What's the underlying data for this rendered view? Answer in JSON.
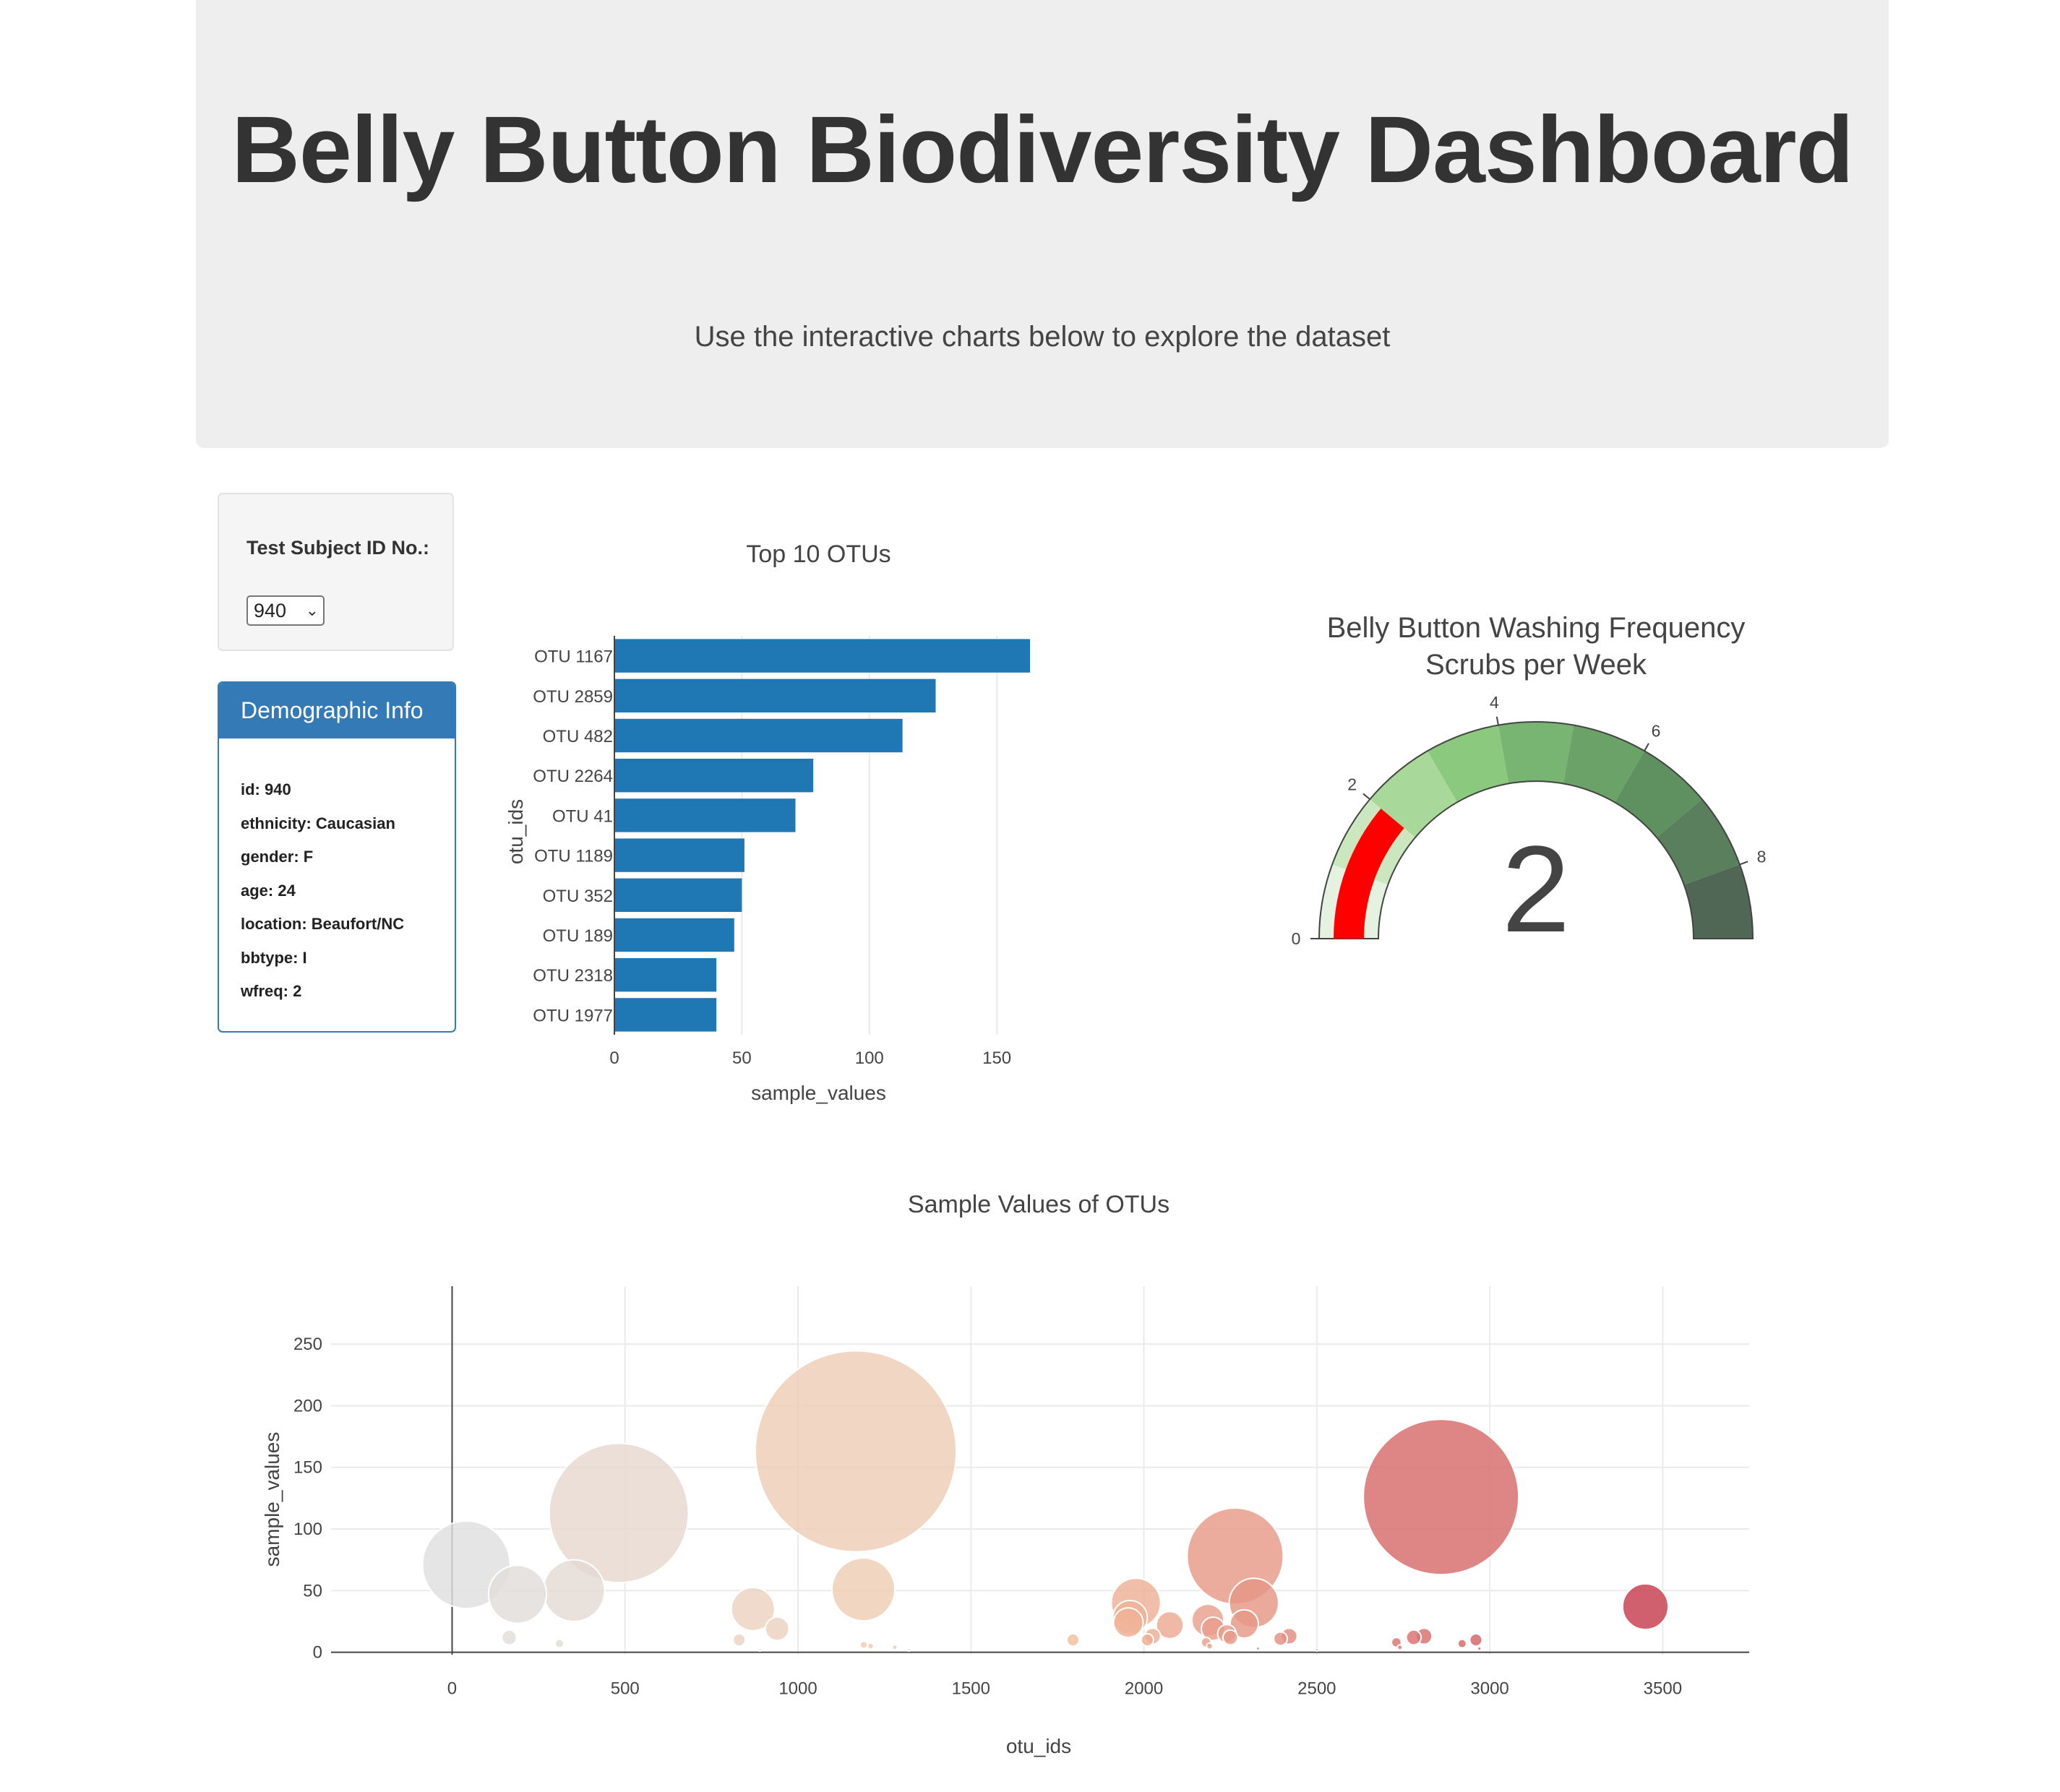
{
  "header": {
    "title": "Belly Button Biodiversity Dashboard",
    "subtitle": "Use the interactive charts below to explore the dataset"
  },
  "selector": {
    "label": "Test Subject ID No.:",
    "selected": "940"
  },
  "demographics": {
    "heading": "Demographic Info",
    "lines": [
      "id: 940",
      "ethnicity: Caucasian",
      "gender: F",
      "age: 24",
      "location: Beaufort/NC",
      "bbtype: I",
      "wfreq: 2"
    ]
  },
  "colors": {
    "bar": "#1f77b4",
    "gauge_needle": "#ff0000",
    "panel": "#337ab7"
  },
  "chart_data": [
    {
      "type": "bar",
      "orientation": "horizontal",
      "title": "Top 10 OTUs",
      "xlabel": "sample_values",
      "ylabel": "otu_ids",
      "categories": [
        "OTU 1167",
        "OTU 2859",
        "OTU 482",
        "OTU 2264",
        "OTU 41",
        "OTU 1189",
        "OTU 352",
        "OTU 189",
        "OTU 2318",
        "OTU 1977"
      ],
      "values": [
        163,
        126,
        113,
        78,
        71,
        51,
        50,
        47,
        40,
        40
      ],
      "xlim": [
        0,
        163
      ],
      "xticks": [
        0,
        50,
        100,
        150
      ],
      "grid": true
    },
    {
      "type": "gauge",
      "title": "Belly Button Washing Frequency",
      "subtitle": "Scrubs per Week",
      "value": 2,
      "range": [
        0,
        9
      ],
      "ticks": [
        0,
        2,
        4,
        6,
        8
      ],
      "steps": [
        {
          "range": [
            0,
            1
          ],
          "color": "#e6f2e0"
        },
        {
          "range": [
            1,
            2
          ],
          "color": "#cbe7c0"
        },
        {
          "range": [
            2,
            3
          ],
          "color": "#a8d89a"
        },
        {
          "range": [
            3,
            4
          ],
          "color": "#8bc97f"
        },
        {
          "range": [
            4,
            5
          ],
          "color": "#78b573"
        },
        {
          "range": [
            5,
            6
          ],
          "color": "#6aa267"
        },
        {
          "range": [
            6,
            7
          ],
          "color": "#5f9160"
        },
        {
          "range": [
            7,
            8
          ],
          "color": "#5a7f5c"
        },
        {
          "range": [
            8,
            9
          ],
          "color": "#516756"
        }
      ],
      "bar_color": "#ff0000"
    },
    {
      "type": "scatter",
      "title": "Sample Values of OTUs",
      "xlabel": "otu_ids",
      "ylabel": "sample_values",
      "xlim": [
        -350,
        3750
      ],
      "ylim": [
        -2,
        297
      ],
      "xticks": [
        0,
        500,
        1000,
        1500,
        2000,
        2500,
        3000,
        3500
      ],
      "yticks": [
        0,
        50,
        100,
        150,
        200,
        250
      ],
      "grid": true,
      "colorscale": [
        "#e0e0e0",
        "#f5c4a2",
        "#c73d4e"
      ],
      "points": [
        {
          "x": 41,
          "y": 71
        },
        {
          "x": 189,
          "y": 47
        },
        {
          "x": 352,
          "y": 50
        },
        {
          "x": 482,
          "y": 113
        },
        {
          "x": 1167,
          "y": 163
        },
        {
          "x": 1189,
          "y": 51
        },
        {
          "x": 2859,
          "y": 126
        },
        {
          "x": 2264,
          "y": 78
        },
        {
          "x": 2318,
          "y": 40
        },
        {
          "x": 3450,
          "y": 37
        },
        {
          "x": 870,
          "y": 35
        },
        {
          "x": 940,
          "y": 19
        },
        {
          "x": 1977,
          "y": 40
        },
        {
          "x": 1960,
          "y": 28
        },
        {
          "x": 1955,
          "y": 24
        },
        {
          "x": 2075,
          "y": 22
        },
        {
          "x": 2185,
          "y": 26
        },
        {
          "x": 2200,
          "y": 19
        },
        {
          "x": 2240,
          "y": 15
        },
        {
          "x": 2290,
          "y": 23
        },
        {
          "x": 2250,
          "y": 12
        },
        {
          "x": 2420,
          "y": 13
        },
        {
          "x": 2395,
          "y": 11
        },
        {
          "x": 1795,
          "y": 10
        },
        {
          "x": 2025,
          "y": 13
        },
        {
          "x": 2010,
          "y": 10
        },
        {
          "x": 2180,
          "y": 8
        },
        {
          "x": 2190,
          "y": 5
        },
        {
          "x": 2810,
          "y": 13
        },
        {
          "x": 2780,
          "y": 12
        },
        {
          "x": 2960,
          "y": 10
        },
        {
          "x": 2730,
          "y": 8
        },
        {
          "x": 2920,
          "y": 7
        },
        {
          "x": 165,
          "y": 12
        },
        {
          "x": 310,
          "y": 7
        },
        {
          "x": 830,
          "y": 10
        },
        {
          "x": 1190,
          "y": 6
        },
        {
          "x": 1210,
          "y": 5
        },
        {
          "x": 1280,
          "y": 4
        },
        {
          "x": 2740,
          "y": 4
        },
        {
          "x": 2970,
          "y": 3
        },
        {
          "x": 2500,
          "y": 2
        },
        {
          "x": 2330,
          "y": 3
        },
        {
          "x": 1320,
          "y": 2
        },
        {
          "x": 890,
          "y": 2
        }
      ]
    }
  ]
}
